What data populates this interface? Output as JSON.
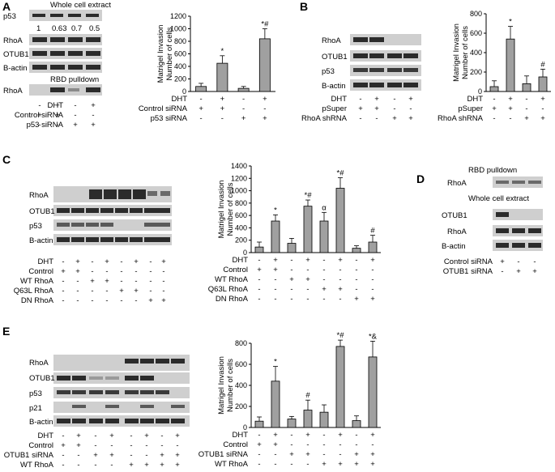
{
  "panels": {
    "A": {
      "letter": "A",
      "blot_header_1": "Whole cell extract",
      "blot_header_2": "RBD pulldown",
      "blot_rows": [
        "p53",
        "RhoA",
        "OTUB1",
        "B-actin",
        "RhoA"
      ],
      "quant_values": [
        "1",
        "0.63",
        "0.7",
        "0.5"
      ],
      "treat_rows": [
        {
          "label": "DHT",
          "signs": [
            "-",
            "+",
            "-",
            "+"
          ]
        },
        {
          "label": "Control siRNA",
          "signs": [
            "+",
            "+",
            "-",
            "-"
          ]
        },
        {
          "label": "p53 siRNA",
          "signs": [
            "-",
            "-",
            "+",
            "+"
          ]
        }
      ]
    },
    "B": {
      "letter": "B",
      "blot_rows": [
        "RhoA",
        "OTUB1",
        "p53",
        "B-actin"
      ],
      "treat_rows": [
        {
          "label": "DHT",
          "signs": [
            "-",
            "+",
            "-",
            "+"
          ]
        },
        {
          "label": "pSuper",
          "signs": [
            "+",
            "+",
            "-",
            "-"
          ]
        },
        {
          "label": "RhoA shRNA",
          "signs": [
            "-",
            "-",
            "+",
            "+"
          ]
        }
      ]
    },
    "C": {
      "letter": "C",
      "blot_rows": [
        "RhoA",
        "OTUB1",
        "p53",
        "B-actin"
      ],
      "treat_rows": [
        {
          "label": "DHT",
          "signs": [
            "-",
            "+",
            "-",
            "+",
            "-",
            "+",
            "-",
            "+"
          ]
        },
        {
          "label": "Control",
          "signs": [
            "+",
            "+",
            "-",
            "-",
            "-",
            "-",
            "-",
            "-"
          ]
        },
        {
          "label": "WT RhoA",
          "signs": [
            "-",
            "-",
            "+",
            "+",
            "-",
            "-",
            "-",
            "-"
          ]
        },
        {
          "label": "Q63L RhoA",
          "signs": [
            "-",
            "-",
            "-",
            "-",
            "+",
            "+",
            "-",
            "-"
          ]
        },
        {
          "label": "DN RhoA",
          "signs": [
            "-",
            "-",
            "-",
            "-",
            "-",
            "-",
            "+",
            "+"
          ]
        }
      ]
    },
    "D": {
      "letter": "D",
      "blot_header_1": "RBD pulldown",
      "blot_header_2": "Whole cell extract",
      "blot_rows": [
        "RhoA",
        "OTUB1",
        "RhoA",
        "B-actin"
      ],
      "treat_rows": [
        {
          "label": "Control siRNA",
          "signs": [
            "+",
            "-",
            "-"
          ]
        },
        {
          "label": "OTUB1 siRNA",
          "signs": [
            "-",
            "+",
            "+"
          ]
        }
      ]
    },
    "E": {
      "letter": "E",
      "blot_rows": [
        "RhoA",
        "OTUB1",
        "p53",
        "p21",
        "B-actin"
      ],
      "treat_rows": [
        {
          "label": "DHT",
          "signs": [
            "-",
            "+",
            "-",
            "+",
            "-",
            "+",
            "-",
            "+"
          ]
        },
        {
          "label": "Control",
          "signs": [
            "+",
            "+",
            "-",
            "-",
            "-",
            "-",
            "-",
            "-"
          ]
        },
        {
          "label": "OTUB1 siRNA",
          "signs": [
            "-",
            "-",
            "+",
            "+",
            "-",
            "-",
            "+",
            "+"
          ]
        },
        {
          "label": "WT RhoA",
          "signs": [
            "-",
            "-",
            "-",
            "-",
            "+",
            "+",
            "+",
            "+"
          ]
        }
      ]
    }
  },
  "chart_data": [
    {
      "id": "A",
      "type": "bar",
      "ylabel": "Matrigel Invasion\nNumber of cells",
      "ylim": [
        0,
        1200
      ],
      "yticks": [
        0,
        200,
        400,
        600,
        800,
        1000,
        1200
      ],
      "values": [
        80,
        450,
        50,
        840
      ],
      "errors": [
        50,
        120,
        30,
        160
      ],
      "marks": [
        "",
        "*",
        "",
        "*#"
      ],
      "treat_rows": [
        {
          "label": "DHT",
          "signs": [
            "-",
            "+",
            "-",
            "+"
          ]
        },
        {
          "label": "Control siRNA",
          "signs": [
            "+",
            "+",
            "-",
            "-"
          ]
        },
        {
          "label": "p53 siRNA",
          "signs": [
            "-",
            "-",
            "+",
            "+"
          ]
        }
      ]
    },
    {
      "id": "B",
      "type": "bar",
      "ylabel": "Matrigel Invasion\nNumber of cells",
      "ylim": [
        0,
        800
      ],
      "yticks": [
        0,
        200,
        400,
        600,
        800
      ],
      "values": [
        50,
        540,
        80,
        150
      ],
      "errors": [
        60,
        130,
        80,
        80
      ],
      "marks": [
        "",
        "*",
        "",
        "#"
      ],
      "treat_rows": [
        {
          "label": "DHT",
          "signs": [
            "-",
            "+",
            "-",
            "+"
          ]
        },
        {
          "label": "pSuper",
          "signs": [
            "+",
            "+",
            "-",
            "-"
          ]
        },
        {
          "label": "RhoA shRNA",
          "signs": [
            "-",
            "-",
            "+",
            "+"
          ]
        }
      ]
    },
    {
      "id": "C",
      "type": "bar",
      "ylabel": "Matrigel Invasion\nNumber of cells",
      "ylim": [
        0,
        1400
      ],
      "yticks": [
        0,
        200,
        400,
        600,
        800,
        1000,
        1200,
        1400
      ],
      "values": [
        90,
        510,
        150,
        750,
        510,
        1040,
        70,
        170
      ],
      "errors": [
        80,
        100,
        80,
        100,
        140,
        170,
        40,
        110
      ],
      "marks": [
        "",
        "*",
        "",
        "*#",
        "α",
        "*#",
        "",
        "#"
      ],
      "treat_rows": [
        {
          "label": "DHT",
          "signs": [
            "-",
            "+",
            "-",
            "+",
            "-",
            "+",
            "-",
            "+"
          ]
        },
        {
          "label": "Control",
          "signs": [
            "+",
            "+",
            "-",
            "-",
            "-",
            "-",
            "-",
            "-"
          ]
        },
        {
          "label": "WT RhoA",
          "signs": [
            "-",
            "-",
            "+",
            "+",
            "-",
            "-",
            "-",
            "-"
          ]
        },
        {
          "label": "Q63L RhoA",
          "signs": [
            "-",
            "-",
            "-",
            "-",
            "+",
            "+",
            "-",
            "-"
          ]
        },
        {
          "label": "DN RhoA",
          "signs": [
            "-",
            "-",
            "-",
            "-",
            "-",
            "-",
            "+",
            "+"
          ]
        }
      ]
    },
    {
      "id": "E",
      "type": "bar",
      "ylabel": "Matrigel Invasion\nNumber of cells",
      "ylim": [
        0,
        800
      ],
      "yticks": [
        0,
        200,
        400,
        600,
        800
      ],
      "values": [
        60,
        440,
        80,
        165,
        145,
        770,
        65,
        670
      ],
      "errors": [
        40,
        140,
        25,
        95,
        70,
        60,
        45,
        150
      ],
      "marks": [
        "",
        "*",
        "",
        "#",
        "",
        "*#",
        "",
        "*&"
      ],
      "treat_rows": [
        {
          "label": "DHT",
          "signs": [
            "-",
            "+",
            "-",
            "+",
            "-",
            "+",
            "-",
            "+"
          ]
        },
        {
          "label": "Control",
          "signs": [
            "+",
            "+",
            "-",
            "-",
            "-",
            "-",
            "-",
            "-"
          ]
        },
        {
          "label": "OTUB1 siRNA",
          "signs": [
            "-",
            "-",
            "+",
            "+",
            "-",
            "-",
            "+",
            "+"
          ]
        },
        {
          "label": "WT RhoA",
          "signs": [
            "-",
            "-",
            "-",
            "-",
            "+",
            "+",
            "+",
            "+"
          ]
        }
      ]
    }
  ]
}
